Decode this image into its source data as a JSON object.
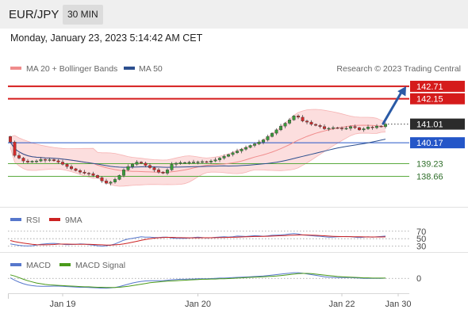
{
  "header": {
    "symbol": "EUR/JPY",
    "timeframe": "30 MIN",
    "datetime": "Monday, January 23, 2023 5:14:42 AM CET"
  },
  "colors": {
    "candle_up": "#3a9a3a",
    "candle_down": "#cf2b2b",
    "bollinger_fill": "#fbd3d3",
    "ma20": "#f08c8c",
    "ma50": "#2c4f8f",
    "resistance": "#d51b1b",
    "pivot": "#2456c8",
    "support": "#5aaa3e",
    "last_price_bg": "#2b2b2b",
    "arrow": "#2a5aa6",
    "rsi": "#5677cc",
    "rsi_ma": "#cc2222",
    "macd": "#5677cc",
    "macd_signal": "#4a9a1a"
  },
  "chart_data": [
    {
      "type": "candlestick",
      "legend": [
        {
          "label": "MA 20 + Bollinger Bands",
          "color_key": "ma20"
        },
        {
          "label": "MA 50",
          "color_key": "ma50"
        }
      ],
      "credit": "Research © 2023 Trading Central",
      "price_range": [
        137.5,
        143.1
      ],
      "last_price": 141.01,
      "levels": [
        {
          "value": 142.71,
          "label": "142.71",
          "kind": "resistance"
        },
        {
          "value": 142.15,
          "label": "142.15",
          "kind": "resistance"
        },
        {
          "value": 140.17,
          "label": "140.17",
          "kind": "pivot"
        },
        {
          "value": 139.23,
          "label": "139.23",
          "kind": "support"
        },
        {
          "value": 138.66,
          "label": "138.66",
          "kind": "support"
        }
      ],
      "arrow": {
        "from_index": 86,
        "from_price": 141.03,
        "to_price": 142.71
      },
      "x_labels": [
        {
          "index": 12,
          "label": "Jan 19"
        },
        {
          "index": 43,
          "label": "Jan 20"
        },
        {
          "index": 76,
          "label": "Jan 22"
        },
        {
          "index": 90,
          "label": "Jan 30"
        }
      ],
      "close": [
        140.2,
        139.6,
        139.48,
        139.35,
        139.3,
        139.34,
        139.35,
        139.42,
        139.38,
        139.41,
        139.36,
        139.3,
        139.2,
        139.1,
        139.0,
        138.92,
        138.85,
        138.8,
        138.78,
        138.7,
        138.6,
        138.45,
        138.35,
        138.4,
        138.52,
        138.7,
        138.95,
        139.1,
        139.2,
        139.3,
        139.25,
        139.15,
        139.05,
        138.95,
        138.85,
        138.8,
        138.95,
        139.2,
        139.25,
        139.28,
        139.28,
        139.29,
        139.3,
        139.31,
        139.32,
        139.3,
        139.35,
        139.4,
        139.48,
        139.56,
        139.64,
        139.72,
        139.8,
        139.88,
        139.96,
        140.05,
        140.12,
        140.2,
        140.3,
        140.45,
        140.6,
        140.75,
        140.92,
        141.05,
        141.2,
        141.38,
        141.32,
        141.15,
        141.1,
        141.0,
        140.95,
        140.9,
        140.8,
        140.82,
        140.85,
        140.83,
        140.8,
        140.82,
        140.9,
        140.85,
        140.75,
        140.8,
        140.88,
        140.85,
        140.92,
        140.9,
        141.01
      ]
    },
    {
      "type": "line",
      "legend": [
        {
          "label": "RSI",
          "color_key": "rsi"
        },
        {
          "label": "9MA",
          "color_key": "rsi_ma"
        }
      ],
      "range": [
        27,
        78
      ],
      "guides": [
        70,
        50,
        30
      ],
      "tick_labels": [
        "70",
        "50",
        "30"
      ],
      "series": [
        {
          "name": "RSI",
          "color_key": "rsi",
          "values": [
            36,
            34,
            32,
            31,
            30.5,
            31,
            33,
            35,
            36,
            37,
            37.5,
            36.5,
            35,
            34,
            34.5,
            35,
            36,
            35.5,
            34,
            33,
            31,
            30,
            31,
            33,
            36,
            41,
            46,
            49,
            51,
            53,
            55,
            54,
            54,
            53,
            53,
            54,
            54,
            52,
            51,
            51,
            51,
            52,
            53,
            54,
            53,
            52,
            52.5,
            53.5,
            54.5,
            55,
            54.5,
            55,
            57,
            56.5,
            56,
            57,
            58,
            57.5,
            56.5,
            57.5,
            59,
            59.5,
            60,
            61,
            62.5,
            63.5,
            62.5,
            60,
            59,
            58,
            57,
            56.5,
            55,
            54,
            54.5,
            55,
            55.5,
            56,
            55.5,
            54,
            53,
            54,
            55,
            54,
            55,
            56,
            57
          ]
        },
        {
          "name": "9MA",
          "color_key": "rsi_ma",
          "values": [
            45,
            42,
            40,
            38,
            36.5,
            35,
            34,
            33.5,
            33.5,
            34,
            34.5,
            35.5,
            35.5,
            35.5,
            35.2,
            35,
            35,
            35,
            35,
            34.5,
            34,
            33.5,
            33,
            33,
            33.5,
            34.5,
            36,
            38,
            40.5,
            43,
            45.5,
            48,
            50,
            51.5,
            52.5,
            53,
            53.5,
            53.5,
            53,
            52.8,
            52.5,
            52.3,
            52.2,
            52.3,
            52.4,
            52.5,
            52.6,
            52.8,
            53,
            53.2,
            53.5,
            53.8,
            54.2,
            54.6,
            55,
            55.4,
            55.8,
            56,
            56.3,
            56.6,
            57,
            57.5,
            58,
            58.5,
            59,
            59.6,
            60,
            60.2,
            60,
            59.6,
            59,
            58.4,
            57.8,
            57,
            56.4,
            56,
            55.7,
            55.5,
            55.4,
            55.2,
            55,
            54.8,
            54.7,
            54.6,
            54.6,
            54.7,
            54.9
          ]
        }
      ]
    },
    {
      "type": "line",
      "legend": [
        {
          "label": "MACD",
          "color_key": "macd"
        },
        {
          "label": "MACD Signal",
          "color_key": "macd_signal"
        }
      ],
      "range": [
        -0.5,
        0.38
      ],
      "guides": [
        0
      ],
      "tick_labels": [
        "0"
      ],
      "series": [
        {
          "name": "MACD",
          "color_key": "macd",
          "values": [
            0.02,
            -0.08,
            -0.16,
            -0.23,
            -0.28,
            -0.31,
            -0.33,
            -0.34,
            -0.34,
            -0.34,
            -0.33,
            -0.33,
            -0.34,
            -0.35,
            -0.36,
            -0.37,
            -0.38,
            -0.38,
            -0.39,
            -0.4,
            -0.41,
            -0.42,
            -0.42,
            -0.41,
            -0.39,
            -0.35,
            -0.3,
            -0.25,
            -0.2,
            -0.16,
            -0.13,
            -0.11,
            -0.1,
            -0.1,
            -0.1,
            -0.1,
            -0.08,
            -0.06,
            -0.05,
            -0.04,
            -0.04,
            -0.03,
            -0.03,
            -0.02,
            -0.02,
            -0.02,
            -0.01,
            0,
            0.01,
            0.01,
            0.02,
            0.03,
            0.04,
            0.05,
            0.06,
            0.07,
            0.08,
            0.09,
            0.1,
            0.12,
            0.14,
            0.16,
            0.18,
            0.2,
            0.22,
            0.24,
            0.24,
            0.22,
            0.19,
            0.16,
            0.13,
            0.1,
            0.07,
            0.05,
            0.04,
            0.03,
            0.03,
            0.03,
            0.03,
            0.02,
            0.01,
            0,
            0,
            0,
            0,
            0,
            0.01
          ]
        },
        {
          "name": "MACD Signal",
          "color_key": "macd_signal",
          "values": [
            0.15,
            0.1,
            0.03,
            -0.04,
            -0.1,
            -0.15,
            -0.2,
            -0.23,
            -0.26,
            -0.28,
            -0.29,
            -0.3,
            -0.31,
            -0.32,
            -0.33,
            -0.34,
            -0.35,
            -0.36,
            -0.36,
            -0.37,
            -0.38,
            -0.38,
            -0.39,
            -0.39,
            -0.39,
            -0.38,
            -0.36,
            -0.34,
            -0.31,
            -0.28,
            -0.25,
            -0.22,
            -0.19,
            -0.17,
            -0.15,
            -0.13,
            -0.12,
            -0.11,
            -0.1,
            -0.09,
            -0.08,
            -0.07,
            -0.06,
            -0.05,
            -0.04,
            -0.04,
            -0.03,
            -0.03,
            -0.02,
            -0.02,
            -0.01,
            0,
            0.01,
            0.02,
            0.03,
            0.04,
            0.05,
            0.06,
            0.07,
            0.08,
            0.09,
            0.1,
            0.12,
            0.14,
            0.16,
            0.18,
            0.2,
            0.21,
            0.21,
            0.2,
            0.18,
            0.16,
            0.14,
            0.12,
            0.1,
            0.08,
            0.07,
            0.06,
            0.05,
            0.04,
            0.03,
            0.02,
            0.02,
            0.01,
            0.01,
            0.01,
            0.01
          ]
        }
      ]
    }
  ]
}
